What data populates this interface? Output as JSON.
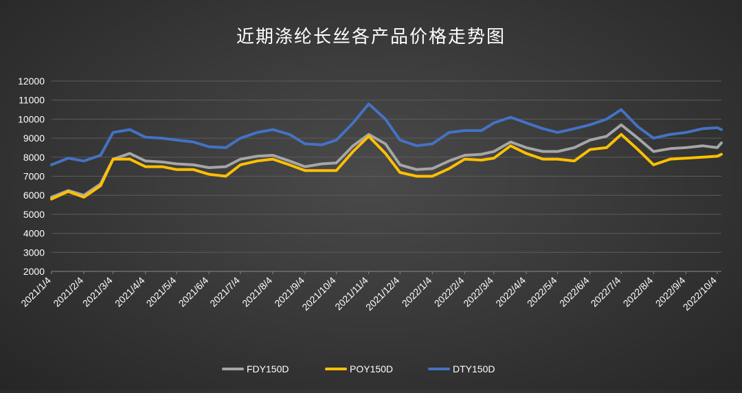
{
  "chart_data": {
    "type": "line",
    "title": "近期涤纶长丝各产品价格走势图",
    "xlabel": "",
    "ylabel": "",
    "ylim": [
      2000,
      12000
    ],
    "y_ticks": [
      2000,
      3000,
      4000,
      5000,
      6000,
      7000,
      8000,
      9000,
      10000,
      11000,
      12000
    ],
    "x_tick_labels": [
      "2021/1/4",
      "2021/2/4",
      "2021/3/4",
      "2021/4/4",
      "2021/5/4",
      "2021/6/4",
      "2021/7/4",
      "2021/8/4",
      "2021/9/4",
      "2021/10/4",
      "2021/11/4",
      "2021/12/4",
      "2022/1/4",
      "2022/2/4",
      "2022/3/4",
      "2022/4/4",
      "2022/5/4",
      "2022/6/4",
      "2022/7/4",
      "2022/8/4",
      "2022/9/4",
      "2022/10/4"
    ],
    "grid": true,
    "legend_position": "bottom",
    "x": [
      "2021/1/4",
      "2021/1/20",
      "2021/2/4",
      "2021/2/20",
      "2021/3/4",
      "2021/3/20",
      "2021/4/4",
      "2021/4/20",
      "2021/5/4",
      "2021/5/20",
      "2021/6/4",
      "2021/6/20",
      "2021/7/4",
      "2021/7/20",
      "2021/8/4",
      "2021/8/20",
      "2021/9/4",
      "2021/9/20",
      "2021/10/4",
      "2021/10/20",
      "2021/11/4",
      "2021/11/20",
      "2021/12/4",
      "2021/12/20",
      "2022/1/4",
      "2022/1/20",
      "2022/2/4",
      "2022/2/20",
      "2022/3/4",
      "2022/3/20",
      "2022/4/4",
      "2022/4/20",
      "2022/5/4",
      "2022/5/20",
      "2022/6/4",
      "2022/6/20",
      "2022/7/4",
      "2022/7/20",
      "2022/8/4",
      "2022/8/20",
      "2022/9/4",
      "2022/9/20",
      "2022/10/4",
      "2022/10/8"
    ],
    "series": [
      {
        "name": "FDY150D",
        "color": "#a6a6a6",
        "values": [
          5900,
          6250,
          6000,
          6600,
          7900,
          8200,
          7800,
          7750,
          7650,
          7600,
          7450,
          7500,
          7900,
          8050,
          8100,
          7800,
          7500,
          7650,
          7700,
          8600,
          9200,
          8700,
          7600,
          7350,
          7400,
          7800,
          8100,
          8150,
          8300,
          8800,
          8500,
          8300,
          8300,
          8500,
          8900,
          9100,
          9700,
          9000,
          8300,
          8450,
          8500,
          8600,
          8500,
          8750
        ]
      },
      {
        "name": "POY150D",
        "color": "#ffc000",
        "values": [
          5800,
          6200,
          5900,
          6500,
          7900,
          7900,
          7500,
          7500,
          7350,
          7350,
          7100,
          7000,
          7600,
          7800,
          7900,
          7600,
          7300,
          7300,
          7300,
          8300,
          9100,
          8200,
          7200,
          7000,
          7000,
          7400,
          7900,
          7850,
          7950,
          8600,
          8200,
          7900,
          7900,
          7800,
          8400,
          8500,
          9200,
          8400,
          7600,
          7900,
          7950,
          8000,
          8050,
          8150
        ]
      },
      {
        "name": "DTY150D",
        "color": "#4472c4",
        "values": [
          7600,
          7950,
          7800,
          8100,
          9300,
          9450,
          9050,
          9000,
          8900,
          8800,
          8550,
          8500,
          9000,
          9300,
          9450,
          9200,
          8700,
          8650,
          8900,
          9800,
          10800,
          10000,
          8900,
          8600,
          8700,
          9300,
          9400,
          9400,
          9800,
          10100,
          9800,
          9500,
          9300,
          9500,
          9700,
          10000,
          10500,
          9600,
          9000,
          9200,
          9300,
          9500,
          9550,
          9450
        ]
      }
    ]
  }
}
